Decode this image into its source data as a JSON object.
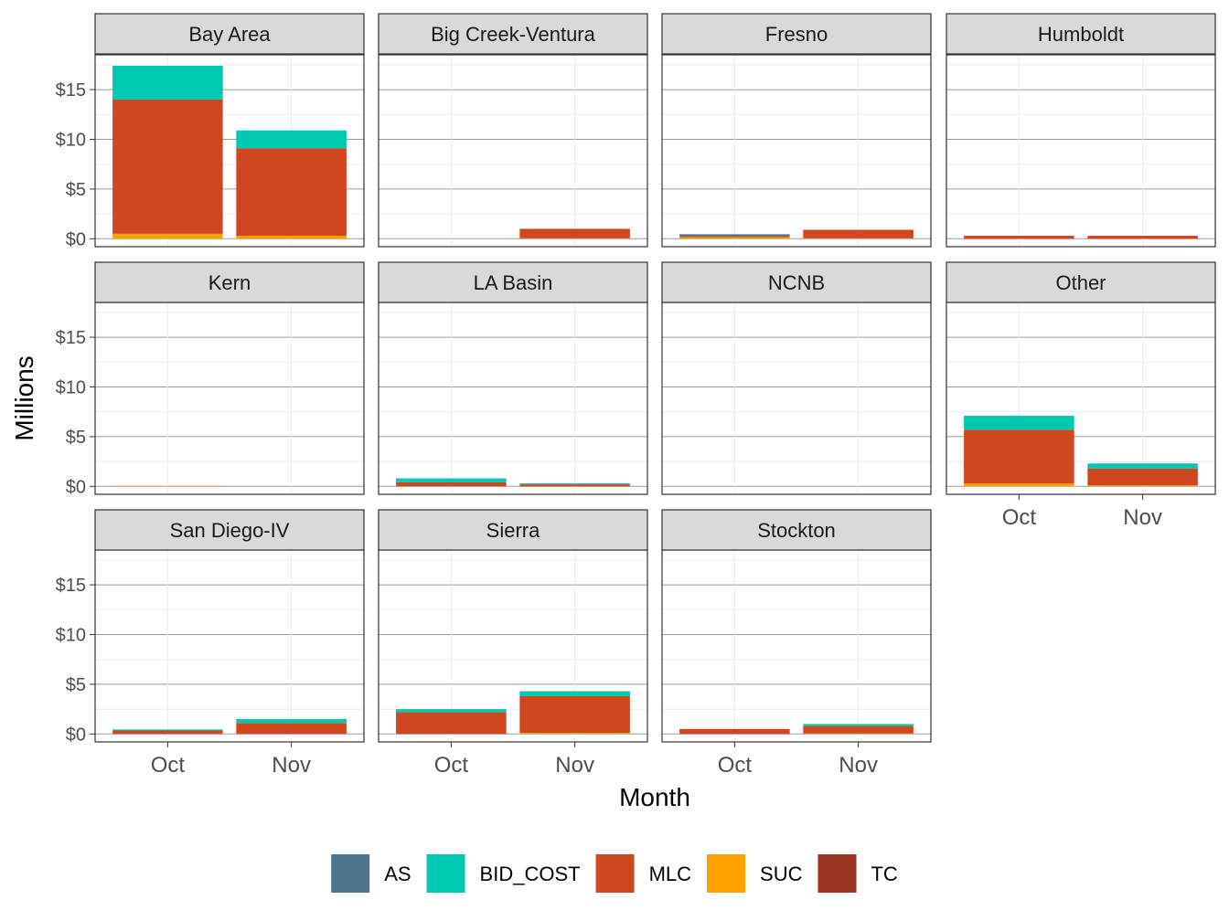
{
  "chart_data": {
    "type": "bar",
    "stacked": true,
    "faceted": true,
    "xlabel": "Month",
    "ylabel": "Millions",
    "categories": [
      "Oct",
      "Nov"
    ],
    "y_ticks": [
      0,
      5,
      10,
      15
    ],
    "y_tick_labels": [
      "$0",
      "$5",
      "$10",
      "$15"
    ],
    "ylim": [
      -0.8,
      18.5
    ],
    "grid": true,
    "legend_position": "bottom",
    "series_order": [
      "AS",
      "BID_COST",
      "MLC",
      "SUC",
      "TC"
    ],
    "stack_order_bottom_to_top": [
      "SUC",
      "MLC",
      "BID_COST",
      "AS",
      "TC"
    ],
    "colors": {
      "AS": "#4e738a",
      "BID_COST": "#00c9b1",
      "MLC": "#d0461f",
      "SUC": "#ffa000",
      "TC": "#993520"
    },
    "facets": [
      {
        "name": "Bay Area",
        "values": {
          "Oct": {
            "SUC": 0.5,
            "MLC": 13.5,
            "BID_COST": 3.4,
            "AS": 0,
            "TC": 0
          },
          "Nov": {
            "SUC": 0.3,
            "MLC": 8.8,
            "BID_COST": 1.8,
            "AS": 0,
            "TC": 0
          }
        }
      },
      {
        "name": "Big Creek-Ventura",
        "values": {
          "Oct": {
            "SUC": 0,
            "MLC": 0,
            "BID_COST": 0,
            "AS": 0,
            "TC": 0
          },
          "Nov": {
            "SUC": 0.05,
            "MLC": 0.95,
            "BID_COST": 0,
            "AS": 0,
            "TC": 0
          }
        }
      },
      {
        "name": "Fresno",
        "values": {
          "Oct": {
            "SUC": 0.15,
            "MLC": 0.1,
            "BID_COST": 0,
            "AS": 0.2,
            "TC": 0
          },
          "Nov": {
            "SUC": 0.05,
            "MLC": 0.85,
            "BID_COST": 0,
            "AS": 0,
            "TC": 0
          }
        }
      },
      {
        "name": "Humboldt",
        "values": {
          "Oct": {
            "SUC": 0,
            "MLC": 0.3,
            "BID_COST": 0,
            "AS": 0,
            "TC": 0
          },
          "Nov": {
            "SUC": 0,
            "MLC": 0.3,
            "BID_COST": 0,
            "AS": 0,
            "TC": 0
          }
        }
      },
      {
        "name": "Kern",
        "values": {
          "Oct": {
            "SUC": 0.05,
            "MLC": 0,
            "BID_COST": 0,
            "AS": 0,
            "TC": 0
          },
          "Nov": {
            "SUC": 0,
            "MLC": 0,
            "BID_COST": 0,
            "AS": 0,
            "TC": 0
          }
        }
      },
      {
        "name": "LA Basin",
        "values": {
          "Oct": {
            "SUC": 0,
            "MLC": 0.4,
            "BID_COST": 0.4,
            "AS": 0,
            "TC": 0
          },
          "Nov": {
            "SUC": 0,
            "MLC": 0.2,
            "BID_COST": 0.1,
            "AS": 0,
            "TC": 0
          }
        }
      },
      {
        "name": "NCNB",
        "values": {
          "Oct": {
            "SUC": 0,
            "MLC": 0,
            "BID_COST": 0,
            "AS": 0,
            "TC": 0
          },
          "Nov": {
            "SUC": 0,
            "MLC": 0,
            "BID_COST": 0,
            "AS": 0,
            "TC": 0
          }
        }
      },
      {
        "name": "Other",
        "values": {
          "Oct": {
            "SUC": 0.3,
            "MLC": 5.4,
            "BID_COST": 1.4,
            "AS": 0,
            "TC": 0
          },
          "Nov": {
            "SUC": 0.1,
            "MLC": 1.7,
            "BID_COST": 0.5,
            "AS": 0,
            "TC": 0
          }
        }
      },
      {
        "name": "San Diego-IV",
        "values": {
          "Oct": {
            "SUC": 0,
            "MLC": 0.35,
            "BID_COST": 0.1,
            "AS": 0,
            "TC": 0
          },
          "Nov": {
            "SUC": 0,
            "MLC": 1.1,
            "BID_COST": 0.4,
            "AS": 0,
            "TC": 0
          }
        }
      },
      {
        "name": "Sierra",
        "values": {
          "Oct": {
            "SUC": 0,
            "MLC": 2.2,
            "BID_COST": 0.3,
            "AS": 0,
            "TC": 0
          },
          "Nov": {
            "SUC": 0.1,
            "MLC": 3.7,
            "BID_COST": 0.5,
            "AS": 0,
            "TC": 0
          }
        }
      },
      {
        "name": "Stockton",
        "values": {
          "Oct": {
            "SUC": 0,
            "MLC": 0.5,
            "BID_COST": 0,
            "AS": 0,
            "TC": 0
          },
          "Nov": {
            "SUC": 0.05,
            "MLC": 0.75,
            "BID_COST": 0.2,
            "AS": 0,
            "TC": 0
          }
        }
      }
    ]
  }
}
